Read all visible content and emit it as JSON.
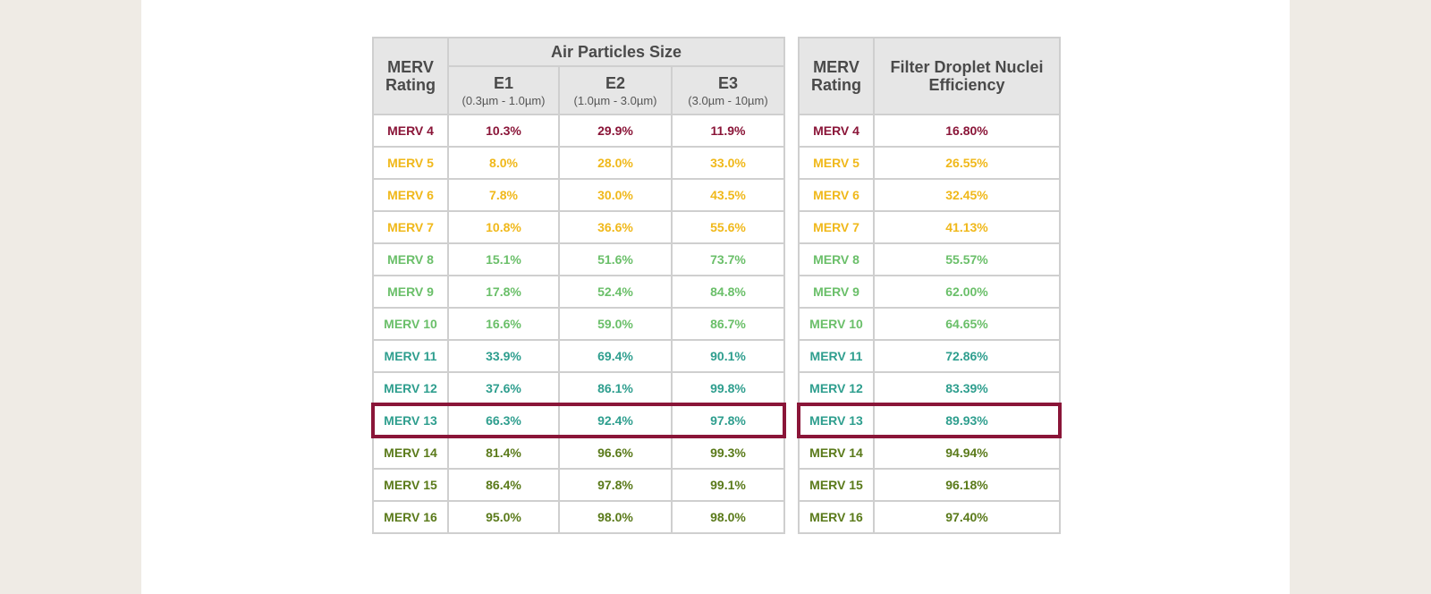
{
  "colors": {
    "maroon": "#8a1538",
    "yellow": "#f0b81a",
    "green": "#6abf69",
    "teal": "#2e9e8e",
    "olive": "#5a7a1a",
    "header_bg": "#e6e6e6",
    "highlight_border": "#8a1538"
  },
  "table_a": {
    "rating_header": "MERV Rating",
    "group_header": "Air Particles Size",
    "columns": [
      {
        "code": "E1",
        "range": "(0.3µm - 1.0µm)"
      },
      {
        "code": "E2",
        "range": "(1.0µm - 3.0µm)"
      },
      {
        "code": "E3",
        "range": "(3.0µm - 10µm)"
      }
    ]
  },
  "table_b": {
    "rating_header": "MERV Rating",
    "efficiency_header": "Filter Droplet Nuclei Efficiency"
  },
  "highlighted_rating": "MERV 13",
  "rows": [
    {
      "rating": "MERV 4",
      "e1": "10.3%",
      "e2": "29.9%",
      "e3": "11.9%",
      "efficiency": "16.80%",
      "color": "#8a1538"
    },
    {
      "rating": "MERV 5",
      "e1": "8.0%",
      "e2": "28.0%",
      "e3": "33.0%",
      "efficiency": "26.55%",
      "color": "#f0b81a"
    },
    {
      "rating": "MERV 6",
      "e1": "7.8%",
      "e2": "30.0%",
      "e3": "43.5%",
      "efficiency": "32.45%",
      "color": "#f0b81a"
    },
    {
      "rating": "MERV 7",
      "e1": "10.8%",
      "e2": "36.6%",
      "e3": "55.6%",
      "efficiency": "41.13%",
      "color": "#f0b81a"
    },
    {
      "rating": "MERV 8",
      "e1": "15.1%",
      "e2": "51.6%",
      "e3": "73.7%",
      "efficiency": "55.57%",
      "color": "#6abf69"
    },
    {
      "rating": "MERV 9",
      "e1": "17.8%",
      "e2": "52.4%",
      "e3": "84.8%",
      "efficiency": "62.00%",
      "color": "#6abf69"
    },
    {
      "rating": "MERV 10",
      "e1": "16.6%",
      "e2": "59.0%",
      "e3": "86.7%",
      "efficiency": "64.65%",
      "color": "#6abf69"
    },
    {
      "rating": "MERV 11",
      "e1": "33.9%",
      "e2": "69.4%",
      "e3": "90.1%",
      "efficiency": "72.86%",
      "color": "#2e9e8e"
    },
    {
      "rating": "MERV 12",
      "e1": "37.6%",
      "e2": "86.1%",
      "e3": "99.8%",
      "efficiency": "83.39%",
      "color": "#2e9e8e"
    },
    {
      "rating": "MERV 13",
      "e1": "66.3%",
      "e2": "92.4%",
      "e3": "97.8%",
      "efficiency": "89.93%",
      "color": "#2e9e8e"
    },
    {
      "rating": "MERV 14",
      "e1": "81.4%",
      "e2": "96.6%",
      "e3": "99.3%",
      "efficiency": "94.94%",
      "color": "#5a7a1a"
    },
    {
      "rating": "MERV 15",
      "e1": "86.4%",
      "e2": "97.8%",
      "e3": "99.1%",
      "efficiency": "96.18%",
      "color": "#5a7a1a"
    },
    {
      "rating": "MERV 16",
      "e1": "95.0%",
      "e2": "98.0%",
      "e3": "98.0%",
      "efficiency": "97.40%",
      "color": "#5a7a1a"
    }
  ]
}
